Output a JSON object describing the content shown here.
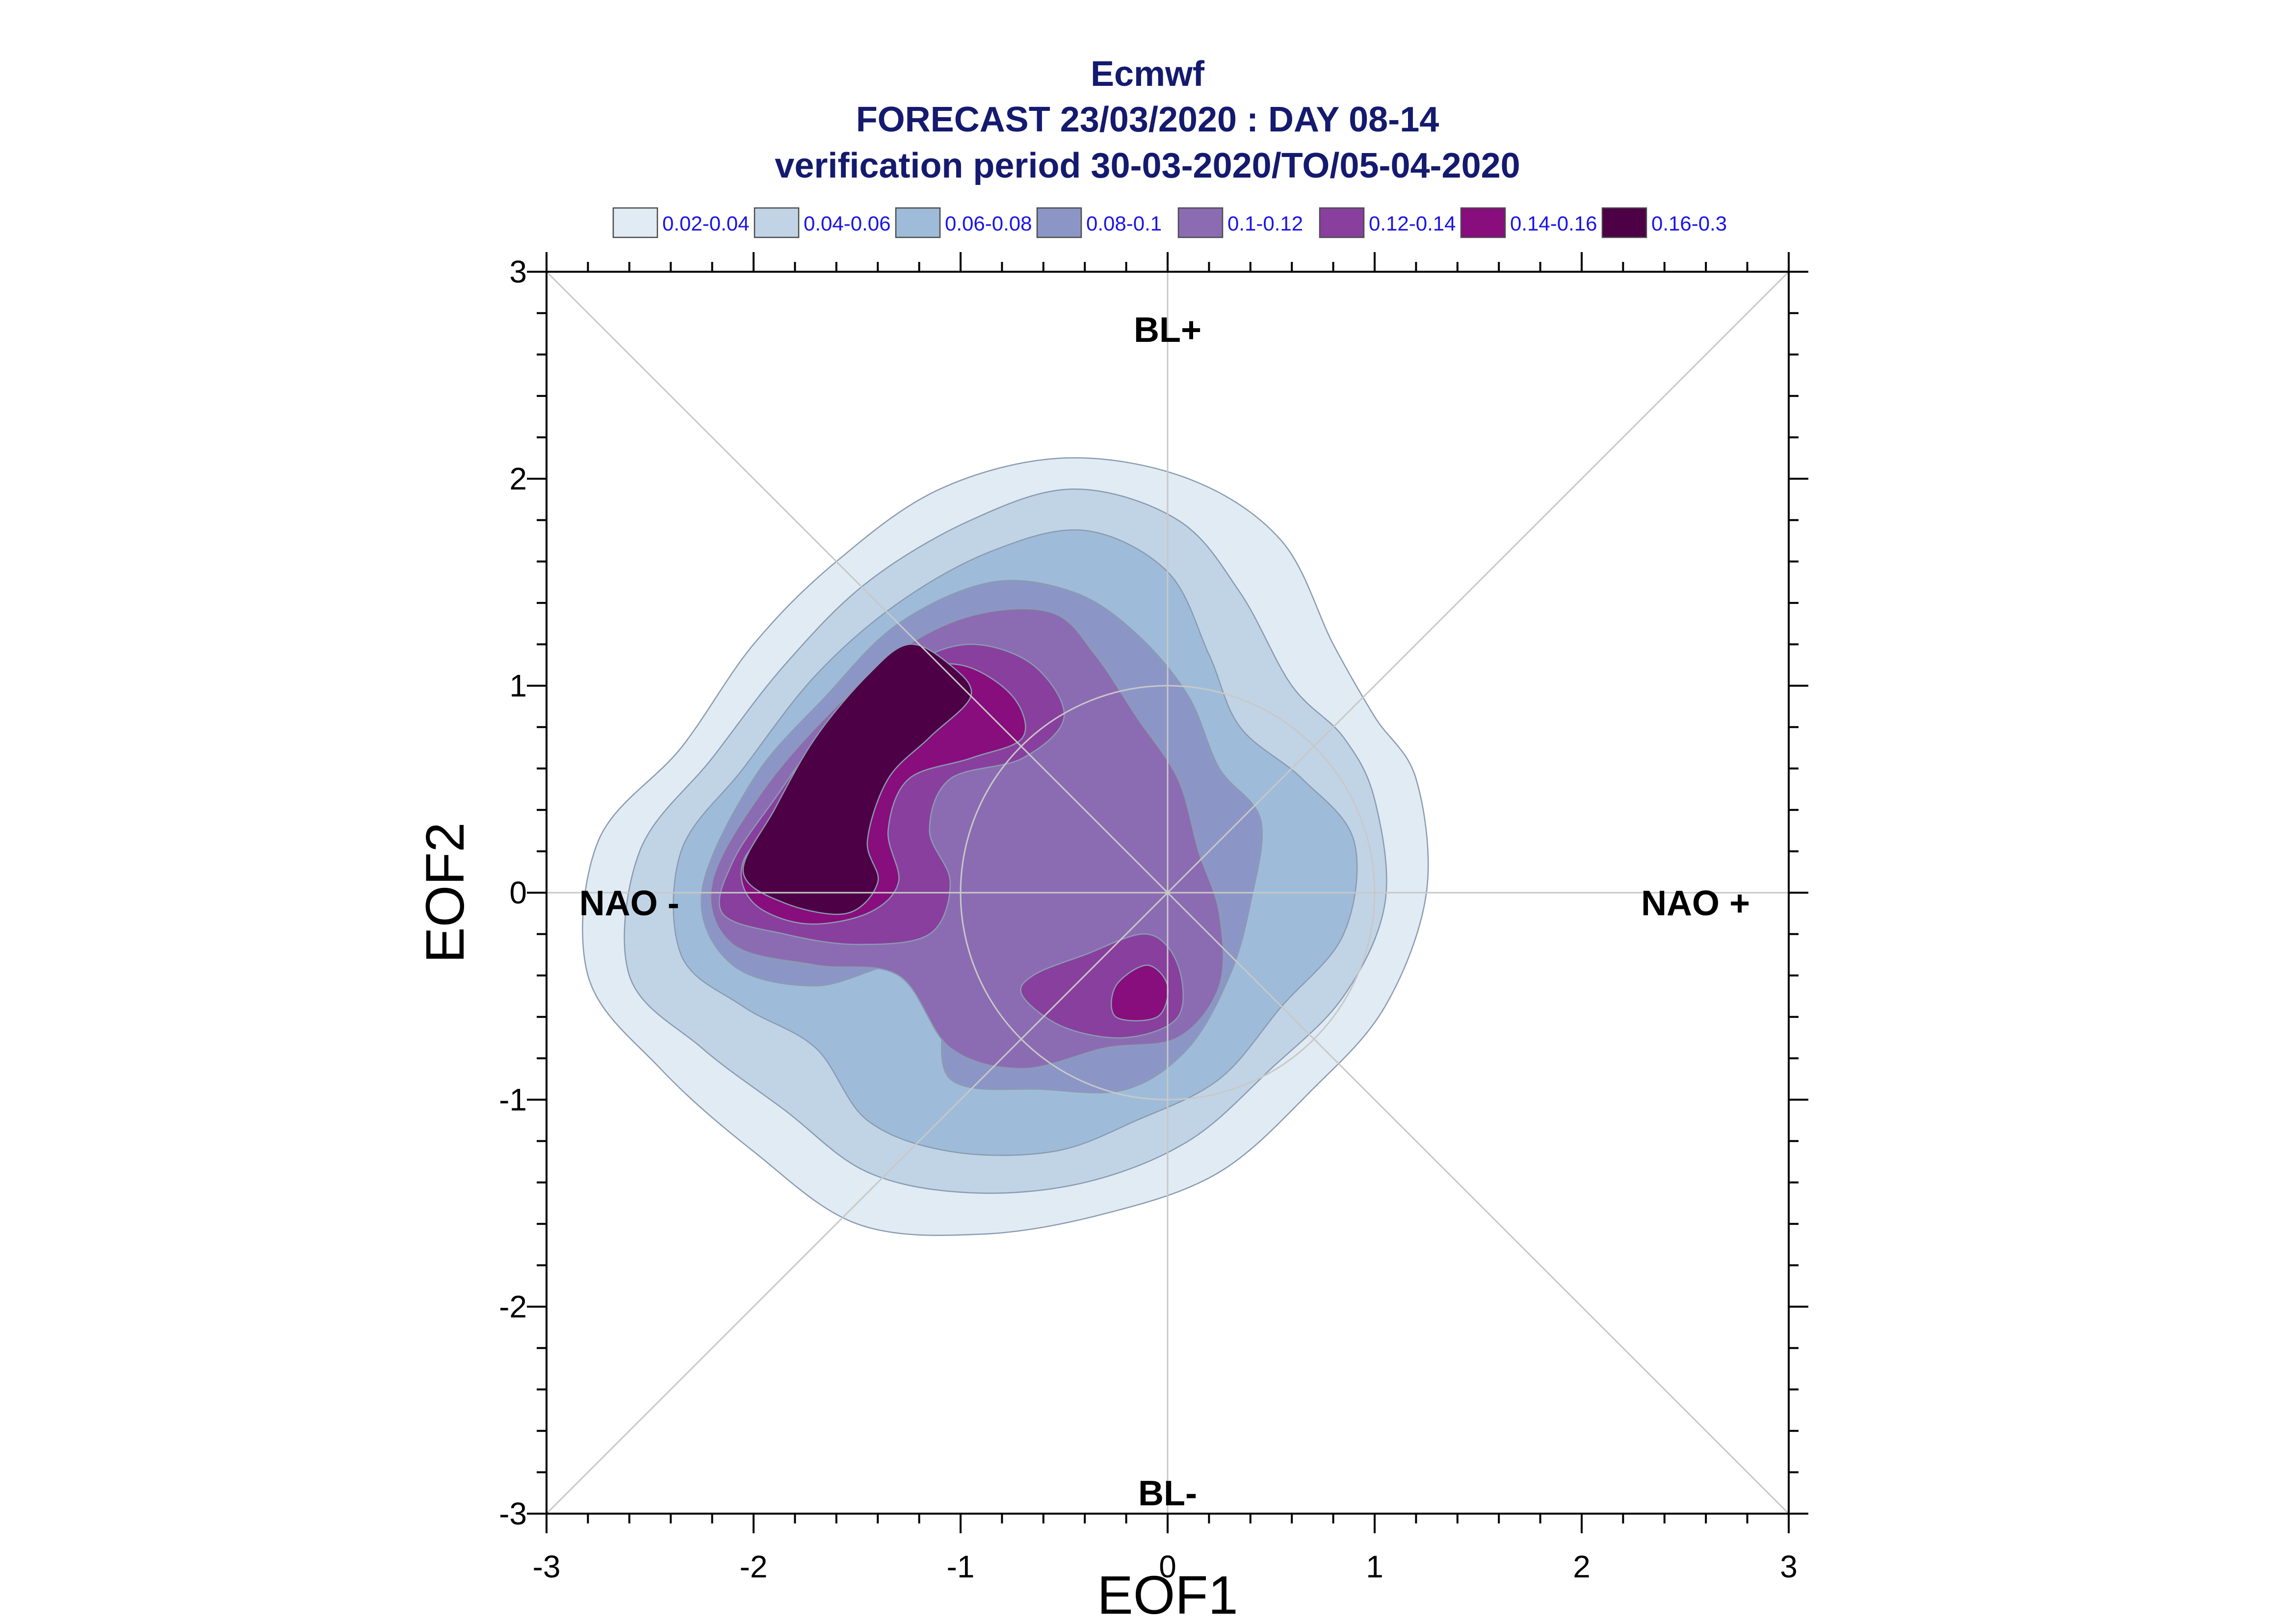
{
  "chart_data": {
    "type": "filled-contour",
    "title_lines": [
      "Ecmwf",
      "FORECAST 23/03/2020 : DAY 08-14",
      "verification period 30-03-2020/TO/05-04-2020"
    ],
    "xlabel": "EOF1",
    "ylabel": "EOF2",
    "xlim": [
      -3,
      3
    ],
    "ylim": [
      -3,
      3
    ],
    "x_ticks": [
      "-3",
      "-2",
      "-1",
      "0",
      "1",
      "2",
      "3"
    ],
    "y_ticks": [
      "-3",
      "-2",
      "-1",
      "0",
      "1",
      "2",
      "3"
    ],
    "grid": false,
    "reference_circle_radius": 1,
    "regime_labels": [
      {
        "text": "BL+",
        "x": 0,
        "y": 2.72
      },
      {
        "text": "BL-",
        "x": 0,
        "y": -2.9
      },
      {
        "text": "NAO -",
        "x": -2.6,
        "y": -0.05
      },
      {
        "text": "NAO +",
        "x": 2.55,
        "y": -0.05
      }
    ],
    "legend": {
      "placement": "top",
      "entries": [
        {
          "label": "0.02-0.04",
          "color": "#e0ebf3"
        },
        {
          "label": "0.04-0.06",
          "color": "#c1d4e6"
        },
        {
          "label": "0.06-0.08",
          "color": "#9ebcd9"
        },
        {
          "label": "0.08-0.1",
          "color": "#8c96c6"
        },
        {
          "label": "0.1-0.12",
          "color": "#8b6cb2"
        },
        {
          "label": "0.12-0.14",
          "color": "#893f9e"
        },
        {
          "label": "0.14-0.16",
          "color": "#880d7d"
        },
        {
          "label": "0.16-0.3",
          "color": "#4d0046"
        }
      ]
    },
    "density_levels": [
      {
        "range": "0.02-0.04",
        "color": "#e0ebf3",
        "polygons": [
          [
            [
              -2.35,
              0.7
            ],
            [
              -2.0,
              1.2
            ],
            [
              -1.6,
              1.6
            ],
            [
              -1.1,
              1.95
            ],
            [
              -0.5,
              2.1
            ],
            [
              0.1,
              2.0
            ],
            [
              0.55,
              1.7
            ],
            [
              0.8,
              1.2
            ],
            [
              1.0,
              0.85
            ],
            [
              1.2,
              0.55
            ],
            [
              1.25,
              0.0
            ],
            [
              1.05,
              -0.55
            ],
            [
              0.7,
              -0.95
            ],
            [
              0.25,
              -1.35
            ],
            [
              -0.3,
              -1.55
            ],
            [
              -0.9,
              -1.65
            ],
            [
              -1.5,
              -1.6
            ],
            [
              -2.0,
              -1.25
            ],
            [
              -2.45,
              -0.85
            ],
            [
              -2.8,
              -0.4
            ],
            [
              -2.75,
              0.25
            ]
          ]
        ]
      },
      {
        "range": "0.04-0.06",
        "color": "#c1d4e6",
        "polygons": [
          [
            [
              -2.2,
              0.65
            ],
            [
              -1.85,
              1.1
            ],
            [
              -1.45,
              1.5
            ],
            [
              -0.95,
              1.8
            ],
            [
              -0.45,
              1.95
            ],
            [
              0.05,
              1.8
            ],
            [
              0.35,
              1.45
            ],
            [
              0.6,
              1.0
            ],
            [
              0.85,
              0.75
            ],
            [
              1.0,
              0.45
            ],
            [
              1.05,
              -0.05
            ],
            [
              0.85,
              -0.5
            ],
            [
              0.5,
              -0.85
            ],
            [
              0.1,
              -1.2
            ],
            [
              -0.4,
              -1.4
            ],
            [
              -0.95,
              -1.45
            ],
            [
              -1.45,
              -1.35
            ],
            [
              -1.85,
              -1.05
            ],
            [
              -2.25,
              -0.75
            ],
            [
              -2.6,
              -0.4
            ],
            [
              -2.55,
              0.2
            ]
          ]
        ]
      },
      {
        "range": "0.06-0.08",
        "color": "#9ebcd9",
        "polygons": [
          [
            [
              -2.05,
              0.6
            ],
            [
              -1.7,
              1.05
            ],
            [
              -1.3,
              1.4
            ],
            [
              -0.85,
              1.65
            ],
            [
              -0.4,
              1.75
            ],
            [
              0.0,
              1.55
            ],
            [
              0.2,
              1.15
            ],
            [
              0.35,
              0.8
            ],
            [
              0.65,
              0.55
            ],
            [
              0.9,
              0.25
            ],
            [
              0.85,
              -0.2
            ],
            [
              0.55,
              -0.55
            ],
            [
              0.25,
              -0.9
            ],
            [
              -0.15,
              -1.1
            ],
            [
              -0.55,
              -1.25
            ],
            [
              -1.05,
              -1.25
            ],
            [
              -1.45,
              -1.1
            ],
            [
              -1.7,
              -0.75
            ],
            [
              -2.05,
              -0.55
            ],
            [
              -2.35,
              -0.3
            ],
            [
              -2.35,
              0.2
            ]
          ]
        ]
      },
      {
        "range": "0.08-0.1",
        "color": "#8c96c6",
        "polygons": [
          [
            [
              -2.0,
              0.55
            ],
            [
              -1.65,
              0.95
            ],
            [
              -1.3,
              1.3
            ],
            [
              -0.85,
              1.5
            ],
            [
              -0.45,
              1.45
            ],
            [
              -0.15,
              1.25
            ],
            [
              0.1,
              0.95
            ],
            [
              0.25,
              0.6
            ],
            [
              0.45,
              0.35
            ],
            [
              0.4,
              -0.05
            ],
            [
              0.3,
              -0.4
            ],
            [
              0.1,
              -0.75
            ],
            [
              -0.2,
              -0.95
            ],
            [
              -0.6,
              -0.95
            ],
            [
              -1.05,
              -0.9
            ],
            [
              -1.1,
              -0.5
            ],
            [
              -1.3,
              -0.35
            ],
            [
              -1.7,
              -0.45
            ],
            [
              -2.1,
              -0.35
            ],
            [
              -2.25,
              0.0
            ]
          ]
        ]
      },
      {
        "range": "0.1-0.12",
        "color": "#8b6cb2",
        "polygons": [
          [
            [
              -1.95,
              0.5
            ],
            [
              -1.6,
              0.9
            ],
            [
              -1.25,
              1.2
            ],
            [
              -0.9,
              1.35
            ],
            [
              -0.55,
              1.35
            ],
            [
              -0.35,
              1.15
            ],
            [
              -0.15,
              0.85
            ],
            [
              0.05,
              0.55
            ],
            [
              0.15,
              0.2
            ],
            [
              0.25,
              -0.1
            ],
            [
              0.25,
              -0.45
            ],
            [
              0.05,
              -0.7
            ],
            [
              -0.3,
              -0.75
            ],
            [
              -0.7,
              -0.85
            ],
            [
              -1.05,
              -0.75
            ],
            [
              -1.3,
              -0.4
            ],
            [
              -1.7,
              -0.35
            ],
            [
              -2.1,
              -0.25
            ],
            [
              -2.2,
              0.05
            ]
          ]
        ]
      },
      {
        "range": "0.12-0.14",
        "color": "#893f9e",
        "polygons": [
          [
            [
              -1.9,
              0.45
            ],
            [
              -1.6,
              0.85
            ],
            [
              -1.25,
              1.1
            ],
            [
              -0.95,
              1.2
            ],
            [
              -0.65,
              1.1
            ],
            [
              -0.5,
              0.85
            ],
            [
              -0.7,
              0.65
            ],
            [
              -1.05,
              0.55
            ],
            [
              -1.15,
              0.3
            ],
            [
              -1.05,
              0.05
            ],
            [
              -1.15,
              -0.2
            ],
            [
              -1.5,
              -0.25
            ],
            [
              -1.85,
              -0.2
            ],
            [
              -2.15,
              -0.1
            ],
            [
              -2.1,
              0.15
            ]
          ],
          [
            [
              -0.65,
              -0.4
            ],
            [
              -0.4,
              -0.3
            ],
            [
              -0.1,
              -0.2
            ],
            [
              0.05,
              -0.35
            ],
            [
              0.05,
              -0.6
            ],
            [
              -0.2,
              -0.7
            ],
            [
              -0.5,
              -0.65
            ],
            [
              -0.7,
              -0.5
            ]
          ]
        ]
      },
      {
        "range": "0.14-0.16",
        "color": "#880d7d",
        "polygons": [
          [
            [
              -1.85,
              0.4
            ],
            [
              -1.6,
              0.8
            ],
            [
              -1.3,
              1.05
            ],
            [
              -1.0,
              1.1
            ],
            [
              -0.75,
              0.95
            ],
            [
              -0.7,
              0.75
            ],
            [
              -0.95,
              0.65
            ],
            [
              -1.25,
              0.55
            ],
            [
              -1.35,
              0.3
            ],
            [
              -1.3,
              0.05
            ],
            [
              -1.45,
              -0.1
            ],
            [
              -1.75,
              -0.15
            ],
            [
              -2.0,
              -0.05
            ],
            [
              -2.05,
              0.15
            ]
          ],
          [
            [
              -0.25,
              -0.45
            ],
            [
              -0.1,
              -0.35
            ],
            [
              0.0,
              -0.45
            ],
            [
              -0.05,
              -0.6
            ],
            [
              -0.25,
              -0.6
            ]
          ]
        ]
      },
      {
        "range": "0.16-0.3",
        "color": "#4d0046",
        "polygons": [
          [
            [
              -1.9,
              0.4
            ],
            [
              -1.7,
              0.75
            ],
            [
              -1.45,
              1.05
            ],
            [
              -1.25,
              1.2
            ],
            [
              -1.05,
              1.1
            ],
            [
              -0.95,
              0.95
            ],
            [
              -1.15,
              0.75
            ],
            [
              -1.35,
              0.55
            ],
            [
              -1.45,
              0.25
            ],
            [
              -1.4,
              0.05
            ],
            [
              -1.55,
              -0.1
            ],
            [
              -1.85,
              -0.05
            ],
            [
              -2.05,
              0.1
            ]
          ]
        ]
      }
    ]
  }
}
